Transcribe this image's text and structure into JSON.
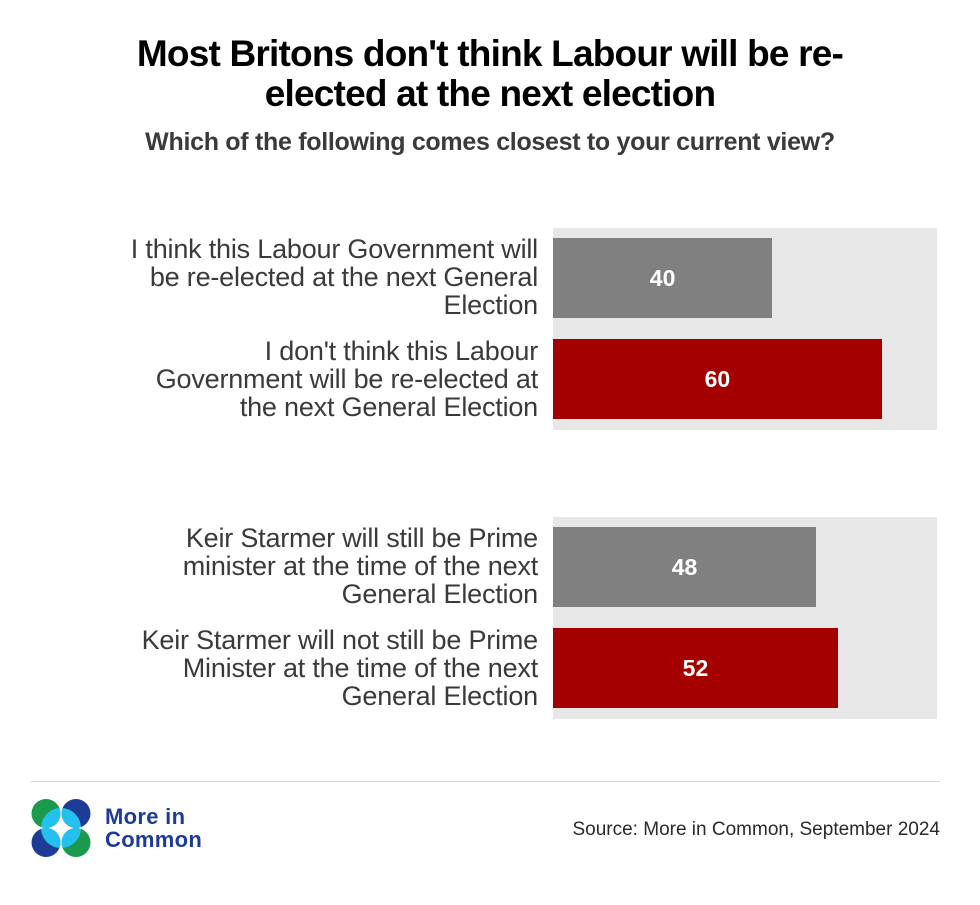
{
  "header": {
    "title_lines": [
      "Most Britons don't think Labour will be re-",
      "elected at the next election"
    ],
    "subtitle": "Which of the following comes closest to your current view?"
  },
  "groups": [
    {
      "bars": [
        {
          "label_lines": [
            "I think this Labour Government will",
            "be re-elected at the next General",
            "Election"
          ],
          "value": 40,
          "value_label": "40",
          "color": "#818081"
        },
        {
          "label_lines": [
            "I don't think this Labour",
            "Government will be re-elected at",
            "the next General Election"
          ],
          "value": 60,
          "value_label": "60",
          "color": "#a50000"
        }
      ]
    },
    {
      "bars": [
        {
          "label_lines": [
            "Keir Starmer will still be Prime",
            "minister at the time of the next",
            "General Election"
          ],
          "value": 48,
          "value_label": "48",
          "color": "#818081"
        },
        {
          "label_lines": [
            "Keir Starmer will not still be Prime",
            "Minister at the time of the next",
            "General Election"
          ],
          "value": 52,
          "value_label": "52",
          "color": "#a50000"
        }
      ]
    }
  ],
  "footer": {
    "brand_lines": [
      "More in",
      "Common"
    ],
    "logo_icon": "four-circles-logo-icon",
    "source": "Source: More in Common, September 2024"
  },
  "colors": {
    "panel_bg": "#e7e7e7",
    "gray_bar": "#818081",
    "red_bar": "#a50000",
    "brand_navy": "#1e3c96",
    "brand_green": "#1a9a4a",
    "brand_cyan": "#25c1ee"
  },
  "chart_data": {
    "type": "bar",
    "orientation": "horizontal",
    "title": "Most Britons don't think Labour will be re-elected at the next election",
    "subtitle": "Which of the following comes closest to your current view?",
    "categories": [
      "I think this Labour Government will be re-elected at the next General Election",
      "I don't think this Labour Government will be re-elected at the next General Election",
      "Keir Starmer will still be Prime minister at the time of the next General Election",
      "Keir Starmer will not still be Prime Minister at the time of the next General Election"
    ],
    "values": [
      40,
      60,
      48,
      52
    ],
    "groups": [
      {
        "categories": [
          "I think this Labour Government will be re-elected at the next General Election",
          "I don't think this Labour Government will be re-elected at the next General Election"
        ],
        "values": [
          40,
          60
        ]
      },
      {
        "categories": [
          "Keir Starmer will still be Prime minister at the time of the next General Election",
          "Keir Starmer will not still be Prime Minister at the time of the next General Election"
        ],
        "values": [
          48,
          52
        ]
      }
    ],
    "bar_colors": [
      "#818081",
      "#a50000",
      "#818081",
      "#a50000"
    ],
    "data_labels": true,
    "xlabel": "",
    "ylabel": "",
    "unit": "%",
    "grid": false,
    "legend": "none",
    "source": "Source: More in Common, September 2024"
  }
}
